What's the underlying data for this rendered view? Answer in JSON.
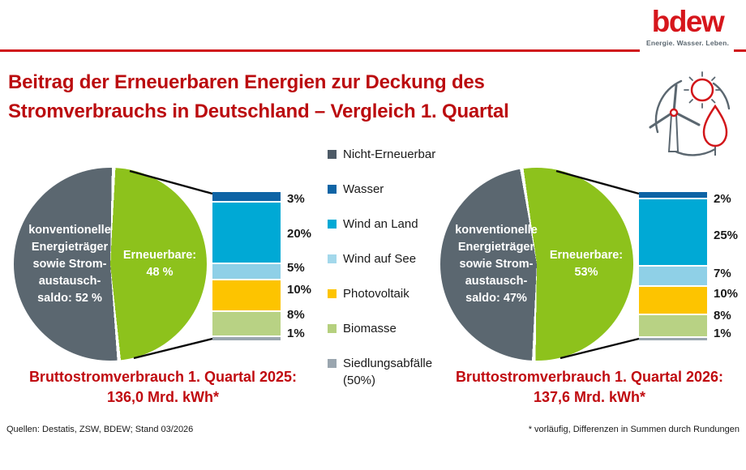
{
  "header": {
    "logo": "bdew",
    "tagline": "Energie. Wasser. Leben."
  },
  "title": {
    "text": "Beitrag der Erneuerbaren Energien zur Deckung des\nStromverbrauchs in Deutschland – Vergleich 1. Quartal"
  },
  "colors": {
    "brand_red": "#d6161c",
    "title_red": "#bb0c0f",
    "conventional_gray": "#5b6770",
    "renewable_green": "#8dc21c"
  },
  "legend": {
    "items": [
      {
        "label": "Nicht-Erneuerbar",
        "color": "#4d5a66"
      },
      {
        "label": "Wasser",
        "color": "#0e64a5"
      },
      {
        "label": "Wind an Land",
        "color": "#00a9d5"
      },
      {
        "label": "Wind auf See",
        "color": "#a3d8eb"
      },
      {
        "label": "Photovoltaik",
        "color": "#fdc400"
      },
      {
        "label": "Biomasse",
        "color": "#b5d07e"
      },
      {
        "label": "Siedlungsabfälle\n(50%)",
        "color": "#9aa6af"
      }
    ]
  },
  "charts": [
    {
      "pie": {
        "conv_label": "konventionelle\nEnergieträger\nsowie Strom-\naustausch-\nsaldo: 52 %",
        "ren_label": "Erneuerbare:\n48 %",
        "ren_pct": 48,
        "colors": {
          "conv": "#5b6770",
          "ren": "#8dc21c"
        }
      },
      "bar": {
        "segments": [
          {
            "name": "wasser",
            "label": "3%",
            "value": 3,
            "color": "#0e64a5"
          },
          {
            "name": "wind-an-land",
            "label": "20%",
            "value": 20,
            "color": "#00a9d5"
          },
          {
            "name": "wind-auf-see",
            "label": "5%",
            "value": 5,
            "color": "#8fd0e7"
          },
          {
            "name": "photovoltaik",
            "label": "10%",
            "value": 10,
            "color": "#fdc400"
          },
          {
            "name": "biomasse",
            "label": "8%",
            "value": 8,
            "color": "#b8d284"
          },
          {
            "name": "siedlungsabfaelle",
            "label": "1%",
            "value": 1,
            "color": "#9aa6af"
          }
        ]
      },
      "caption": "Bruttostromverbrauch 1. Quartal 2025:\n136,0 Mrd. kWh*"
    },
    {
      "pie": {
        "conv_label": "konventionelle\nEnergieträger\nsowie Strom-\naustausch-\nsaldo: 47%",
        "ren_label": "Erneuerbare:\n53%",
        "ren_pct": 53,
        "colors": {
          "conv": "#5b6770",
          "ren": "#8dc21c"
        }
      },
      "bar": {
        "segments": [
          {
            "name": "wasser",
            "label": "2%",
            "value": 2,
            "color": "#0e64a5"
          },
          {
            "name": "wind-an-land",
            "label": "25%",
            "value": 25,
            "color": "#00a9d5"
          },
          {
            "name": "wind-auf-see",
            "label": "7%",
            "value": 7,
            "color": "#8fd0e7"
          },
          {
            "name": "photovoltaik",
            "label": "10%",
            "value": 10,
            "color": "#fdc400"
          },
          {
            "name": "biomasse",
            "label": "8%",
            "value": 8,
            "color": "#b8d284"
          },
          {
            "name": "siedlungsabfaelle",
            "label": "1%",
            "value": 1,
            "color": "#9aa6af"
          }
        ]
      },
      "caption": "Bruttostromverbrauch 1. Quartal 2026:\n137,6 Mrd. kWh*"
    }
  ],
  "footer": {
    "left": "Quellen: Destatis, ZSW, BDEW; Stand 03/2026",
    "right": "* vorläufig, Differenzen in Summen durch Rundungen"
  },
  "chart_data": [
    {
      "type": "pie",
      "title": "Bruttostromverbrauch 1. Quartal 2025: 136,0 Mrd. kWh*",
      "labels": [
        "konventionelle Energieträger sowie Stromaustauschsaldo",
        "Erneuerbare"
      ],
      "values": [
        52,
        48
      ],
      "unit": "%",
      "renewables_breakdown": {
        "type": "bar",
        "categories": [
          "Wasser",
          "Wind an Land",
          "Wind auf See",
          "Photovoltaik",
          "Biomasse",
          "Siedlungsabfälle (50%)"
        ],
        "values": [
          3,
          20,
          5,
          10,
          8,
          1
        ],
        "unit": "%"
      }
    },
    {
      "type": "pie",
      "title": "Bruttostromverbrauch 1. Quartal 2026: 137,6 Mrd. kWh*",
      "labels": [
        "konventionelle Energieträger sowie Stromaustauschsaldo",
        "Erneuerbare"
      ],
      "values": [
        47,
        53
      ],
      "unit": "%",
      "renewables_breakdown": {
        "type": "bar",
        "categories": [
          "Wasser",
          "Wind an Land",
          "Wind auf See",
          "Photovoltaik",
          "Biomasse",
          "Siedlungsabfälle (50%)"
        ],
        "values": [
          2,
          25,
          7,
          10,
          8,
          1
        ],
        "unit": "%"
      }
    }
  ]
}
